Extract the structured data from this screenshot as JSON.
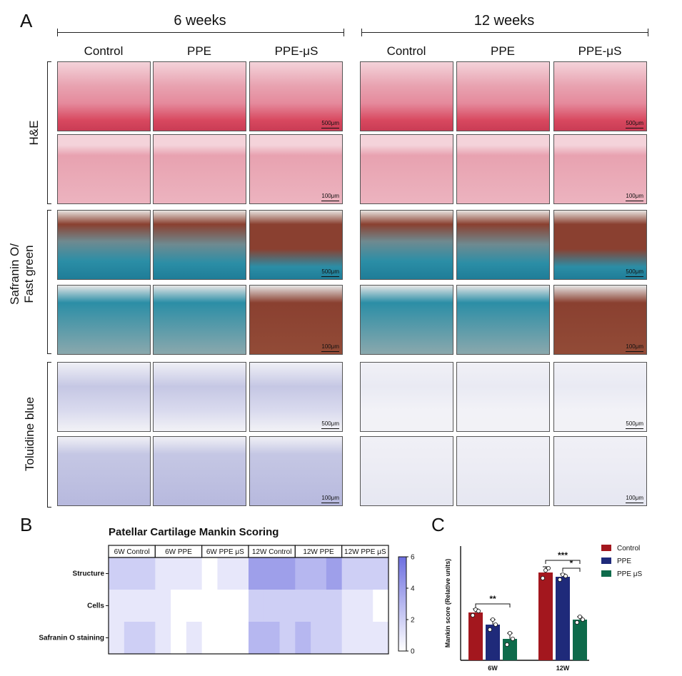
{
  "panel_a": {
    "letter": "A",
    "time_labels": [
      "6 weeks",
      "12 weeks"
    ],
    "column_labels": [
      "Control",
      "PPE",
      "PPE-μS",
      "Control",
      "PPE",
      "PPE-μS"
    ],
    "row_labels": [
      "H&E",
      "Safranin O/\nFast green",
      "Toluidine blue"
    ],
    "row_label_lines": {
      "he": "H&E",
      "saf1": "Safranin O/",
      "saf2": "Fast green",
      "tol": "Toluidine blue"
    },
    "scale_bars": {
      "low": "500μm",
      "high": "100μm"
    },
    "stain_colors": {
      "he_bg": "#f4d3da",
      "he_tissue": "#e8a2b0",
      "he_bone": "#d8485f",
      "saf_teal": "#2b8ea6",
      "saf_red": "#8a4030",
      "tol_bg": "#f0f0f6",
      "tol_tissue": "#c5c7e4"
    }
  },
  "panel_b": {
    "letter": "B",
    "title": "Patellar Cartilage Mankin Scoring",
    "groups": [
      "6W Control",
      "6W PPE",
      "6W PPE μS",
      "12W Control",
      "12W PPE",
      "12W PPE μS"
    ],
    "rows": [
      "Structure",
      "Cells",
      "Safranin O staining"
    ],
    "colorbar_ticks": [
      "6",
      "4",
      "2",
      "0"
    ],
    "colorbar_range": [
      0,
      6
    ],
    "color_low": "#ffffff",
    "color_high": "#6d6fe0",
    "values": [
      [
        2,
        2,
        2,
        1,
        1,
        1,
        0,
        1,
        1,
        4,
        4,
        4,
        3,
        3,
        4,
        2,
        2,
        2
      ],
      [
        1,
        1,
        1,
        1,
        0,
        0,
        0,
        0,
        0,
        2,
        2,
        2,
        2,
        2,
        2,
        1,
        1,
        0
      ],
      [
        1,
        2,
        2,
        1,
        0,
        1,
        0,
        0,
        0,
        3,
        3,
        2,
        3,
        2,
        2,
        1,
        1,
        1
      ]
    ]
  },
  "chart_data": {
    "type": "bar",
    "letter": "C",
    "categories": [
      "6W",
      "12W"
    ],
    "ylabel": "Mankin score (Relative units)",
    "xlabel": "",
    "ylim": [
      0,
      16
    ],
    "series": [
      {
        "name": "Control",
        "color": "#a3171e",
        "values": [
          6.7,
          12.3
        ],
        "points": [
          [
            6.3,
            7.1,
            6.9
          ],
          [
            11.5,
            12.6,
            12.9
          ]
        ]
      },
      {
        "name": "PPE",
        "color": "#1f2a7a",
        "values": [
          5.0,
          11.7
        ],
        "points": [
          [
            4.3,
            5.7,
            5.0
          ],
          [
            11.3,
            12.0,
            11.8
          ]
        ]
      },
      {
        "name": "PPE μS",
        "color": "#0e6b4b",
        "values": [
          3.0,
          5.7
        ],
        "points": [
          [
            2.2,
            3.8,
            3.0
          ],
          [
            5.3,
            6.1,
            5.7
          ]
        ]
      }
    ],
    "errors": [
      [
        0.5,
        0.8
      ],
      [
        0.7,
        0.4
      ],
      [
        0.8,
        0.4
      ]
    ],
    "significance": [
      {
        "group": "6W",
        "from": "Control",
        "to": "PPE μS",
        "label": "**"
      },
      {
        "group": "12W",
        "from": "Control",
        "to": "PPE μS",
        "label": "***"
      },
      {
        "group": "12W",
        "from": "PPE",
        "to": "PPE μS",
        "label": "*"
      }
    ]
  }
}
